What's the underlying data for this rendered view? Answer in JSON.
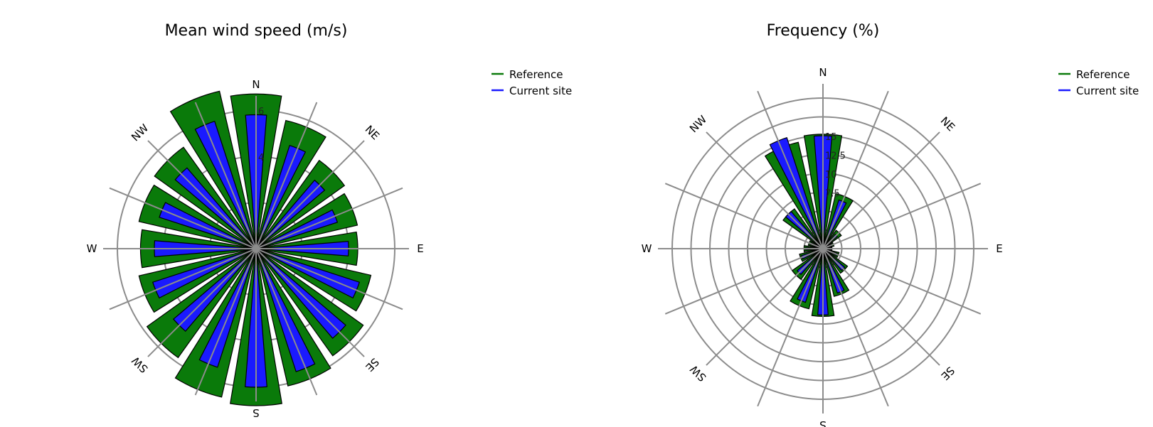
{
  "colors": {
    "reference": "#0a7a0a",
    "current": "#1a1aff",
    "grid": "#8c8c8c",
    "outline": "#000000"
  },
  "chart_data": [
    {
      "type": "polar-bar",
      "title": "Mean wind speed (m/s)",
      "directions": [
        "N",
        "NE",
        "E",
        "SE",
        "S",
        "SW",
        "W",
        "NW"
      ],
      "sector_count": 16,
      "sector_angles_deg": [
        0,
        22.5,
        45,
        67.5,
        90,
        112.5,
        135,
        157.5,
        180,
        202.5,
        225,
        247.5,
        270,
        292.5,
        315,
        337.5
      ],
      "rmax": 6.0,
      "rings": [
        2,
        4,
        6
      ],
      "ring_labels": [
        "4",
        "6"
      ],
      "legend": {
        "placement": "top-right",
        "items": [
          "Reference",
          "Current site"
        ]
      },
      "series": [
        {
          "name": "Reference",
          "values": [
            6.7,
            5.7,
            4.7,
            4.5,
            4.4,
            5.1,
            5.7,
            6.1,
            6.8,
            6.6,
            5.8,
            5.2,
            5.0,
            5.2,
            5.4,
            7.0
          ]
        },
        {
          "name": "Current site",
          "values": [
            5.8,
            4.7,
            3.9,
            3.7,
            4.0,
            4.7,
            5.1,
            5.6,
            6.0,
            5.4,
            4.7,
            4.7,
            4.4,
            4.4,
            4.6,
            5.8
          ]
        }
      ]
    },
    {
      "type": "polar-bar",
      "title": "Frequency (%)",
      "directions": [
        "N",
        "NE",
        "E",
        "SE",
        "S",
        "SW",
        "W",
        "NW"
      ],
      "sector_count": 16,
      "sector_angles_deg": [
        0,
        22.5,
        45,
        67.5,
        90,
        112.5,
        135,
        157.5,
        180,
        202.5,
        225,
        247.5,
        270,
        292.5,
        315,
        337.5
      ],
      "rmax": 20.0,
      "rings": [
        2.5,
        5,
        7.5,
        10,
        12.5,
        15,
        17.5,
        20
      ],
      "ring_labels": [
        "7.5",
        "10",
        "12.5",
        "15"
      ],
      "legend": {
        "placement": "top-right",
        "items": [
          "Reference",
          "Current site"
        ]
      },
      "series": [
        {
          "name": "Reference",
          "values": [
            15.2,
            7.5,
            3.0,
            1.5,
            1.2,
            2.2,
            4.0,
            6.5,
            9.0,
            8.2,
            5.0,
            3.2,
            2.5,
            2.0,
            6.5,
            14.5
          ]
        },
        {
          "name": "Current site",
          "values": [
            15.0,
            6.8,
            2.5,
            1.3,
            1.1,
            2.0,
            3.8,
            6.2,
            8.8,
            7.5,
            4.5,
            3.0,
            2.3,
            1.8,
            6.5,
            15.5
          ]
        }
      ]
    }
  ]
}
